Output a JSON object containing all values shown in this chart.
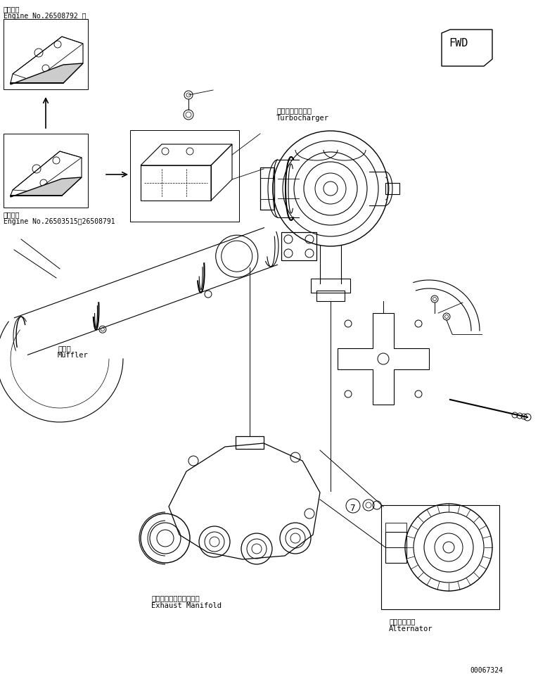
{
  "background_color": "#ffffff",
  "line_color": "#000000",
  "font_size_small": 7,
  "font_size_medium": 8,
  "labels": {
    "top_left_jp": "適用号機",
    "top_left_en": "Engine No.26508792 ～",
    "mid_left_jp": "適用号機",
    "mid_left_en": "Engine No.26503515～26508791",
    "turbocharger_jp": "ターボチャージャ",
    "turbocharger_en": "Turbocharger",
    "muffler_jp": "マフラ",
    "muffler_en": "Muffler",
    "exhaust_jp": "エキゾーストマニホルド",
    "exhaust_en": "Exhaust Manifold",
    "alternator_jp": "オルタネータ",
    "alternator_en": "Alternator",
    "part_number": "00067324",
    "fwd": "FWD",
    "part_7": "7"
  },
  "figsize": [
    7.65,
    9.58
  ],
  "dpi": 100
}
